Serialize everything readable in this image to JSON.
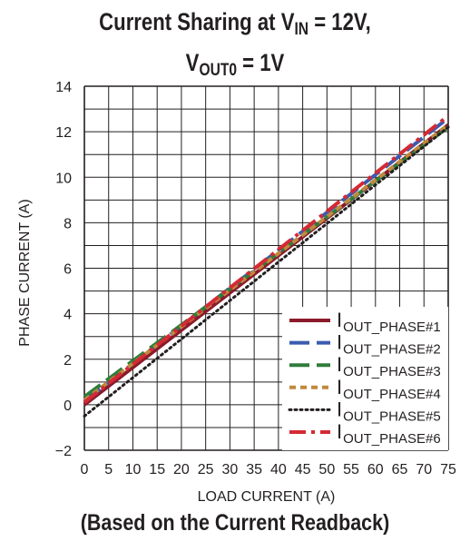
{
  "title": {
    "line1_prefix": "Current Sharing at V",
    "line1_sub": "IN",
    "line1_suffix": " = 12V,",
    "line2_prefix": "V",
    "line2_sub": "OUT0",
    "line2_suffix": " = 1V"
  },
  "caption": "(Based on the Current Readback)",
  "chart_data": {
    "type": "line",
    "title": "Current Sharing at VIN = 12V, VOUT0 = 1V",
    "xlabel": "LOAD CURRENT (A)",
    "ylabel": "PHASE CURRENT (A)",
    "xlim": [
      0,
      75
    ],
    "ylim": [
      -2,
      14
    ],
    "xticks": [
      "0",
      "5",
      "10",
      "15",
      "20",
      "25",
      "30",
      "35",
      "40",
      "45",
      "50",
      "55",
      "60",
      "65",
      "70",
      "75"
    ],
    "yticks": [
      "−2",
      "0",
      "2",
      "4",
      "6",
      "8",
      "10",
      "12",
      "14"
    ],
    "grid": true,
    "legend_position": "bottom-right",
    "x": [
      0,
      75
    ],
    "series": [
      {
        "name": "IOUT_PHASE#1",
        "values": [
          0.0,
          12.3
        ],
        "color": "#8b1a2b",
        "dash": "solid"
      },
      {
        "name": "IOUT_PHASE#2",
        "values": [
          0.15,
          12.6
        ],
        "color": "#3a5bb0",
        "dash": "long"
      },
      {
        "name": "IOUT_PHASE#3",
        "values": [
          0.35,
          12.2
        ],
        "color": "#2e7d3a",
        "dash": "long"
      },
      {
        "name": "IOUT_PHASE#4",
        "values": [
          0.2,
          12.3
        ],
        "color": "#c08a3e",
        "dash": "short"
      },
      {
        "name": "IOUT_PHASE#5",
        "values": [
          -0.5,
          12.2
        ],
        "color": "#231f20",
        "dash": "dot"
      },
      {
        "name": "IOUT_PHASE#6",
        "values": [
          0.1,
          12.7
        ],
        "color": "#d42a35",
        "dash": "dashdot"
      }
    ]
  }
}
